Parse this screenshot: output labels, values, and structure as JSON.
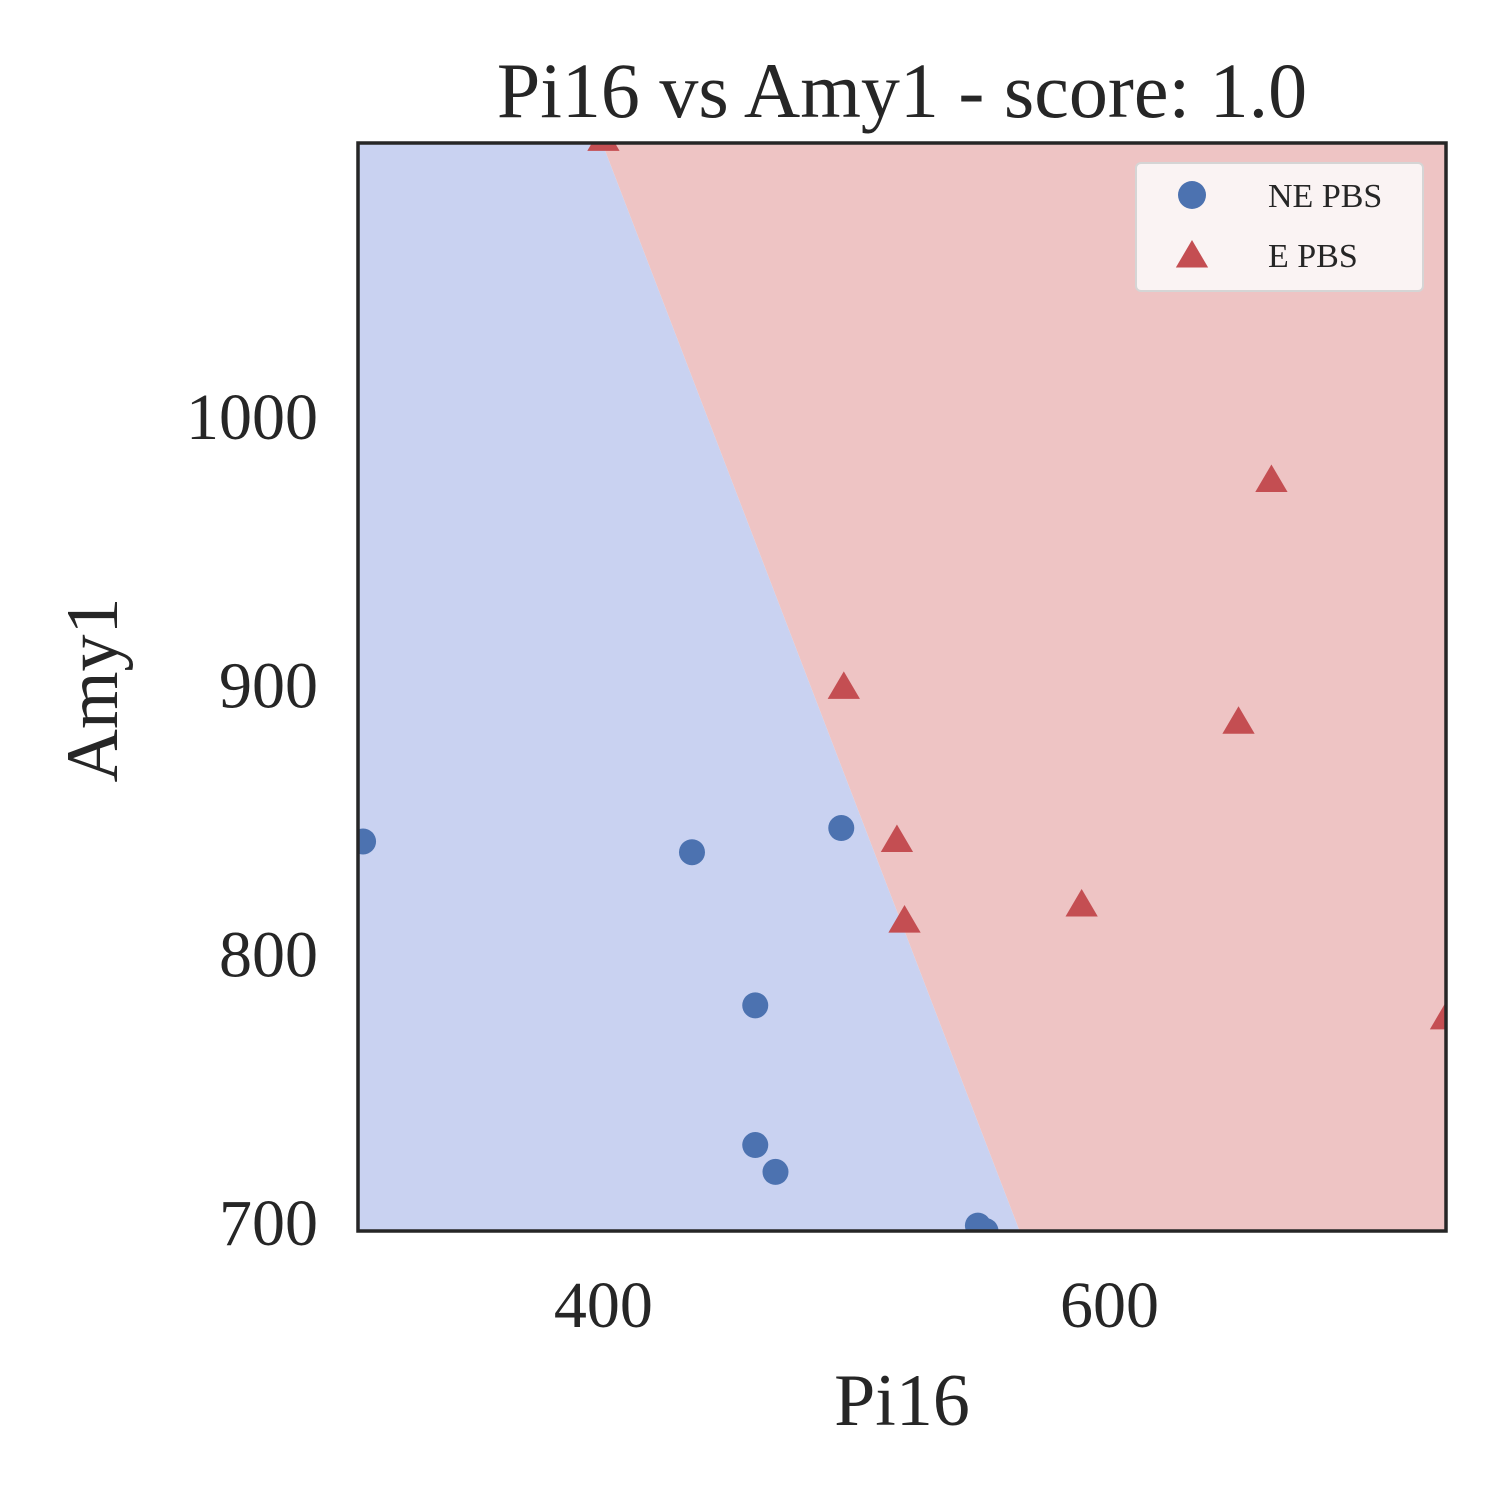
{
  "chart_data": {
    "type": "scatter",
    "title": "Pi16 vs Amy1 - score: 1.0",
    "xlabel": "Pi16",
    "ylabel": "Amy1",
    "xlim": [
      303,
      733
    ],
    "ylim": [
      697,
      1102
    ],
    "x_ticks": [
      400,
      600
    ],
    "x_tick_labels": [
      "400",
      "600"
    ],
    "y_ticks": [
      700,
      800,
      900,
      1000
    ],
    "y_tick_labels": [
      "700",
      "800",
      "900",
      "1000"
    ],
    "grid": false,
    "legend_position": "top-right",
    "decision_boundary": {
      "points": [
        [
          398,
          1102
        ],
        [
          566,
          697
        ]
      ],
      "left_region_class": "NE PBS",
      "right_region_class": "E PBS"
    },
    "series": [
      {
        "name": "NE PBS",
        "marker": "circle",
        "color": "#4C72B0",
        "points": [
          [
            305,
            842
          ],
          [
            435,
            838
          ],
          [
            494,
            847
          ],
          [
            460,
            781
          ],
          [
            460,
            729
          ],
          [
            468,
            719
          ],
          [
            548,
            699
          ],
          [
            551,
            697
          ]
        ]
      },
      {
        "name": "E PBS",
        "marker": "triangle",
        "color": "#C44E52",
        "points": [
          [
            400,
            1103
          ],
          [
            495,
            899
          ],
          [
            516,
            842
          ],
          [
            519,
            812
          ],
          [
            589,
            818
          ],
          [
            651,
            886
          ],
          [
            664,
            976
          ],
          [
            733,
            776
          ]
        ]
      }
    ],
    "colors": {
      "left_region": "#C9D2F1",
      "right_region": "#EEC4C4",
      "frame": "#262626",
      "legend_bg": "#FAF3F3",
      "legend_border": "#D5D5D5"
    }
  }
}
